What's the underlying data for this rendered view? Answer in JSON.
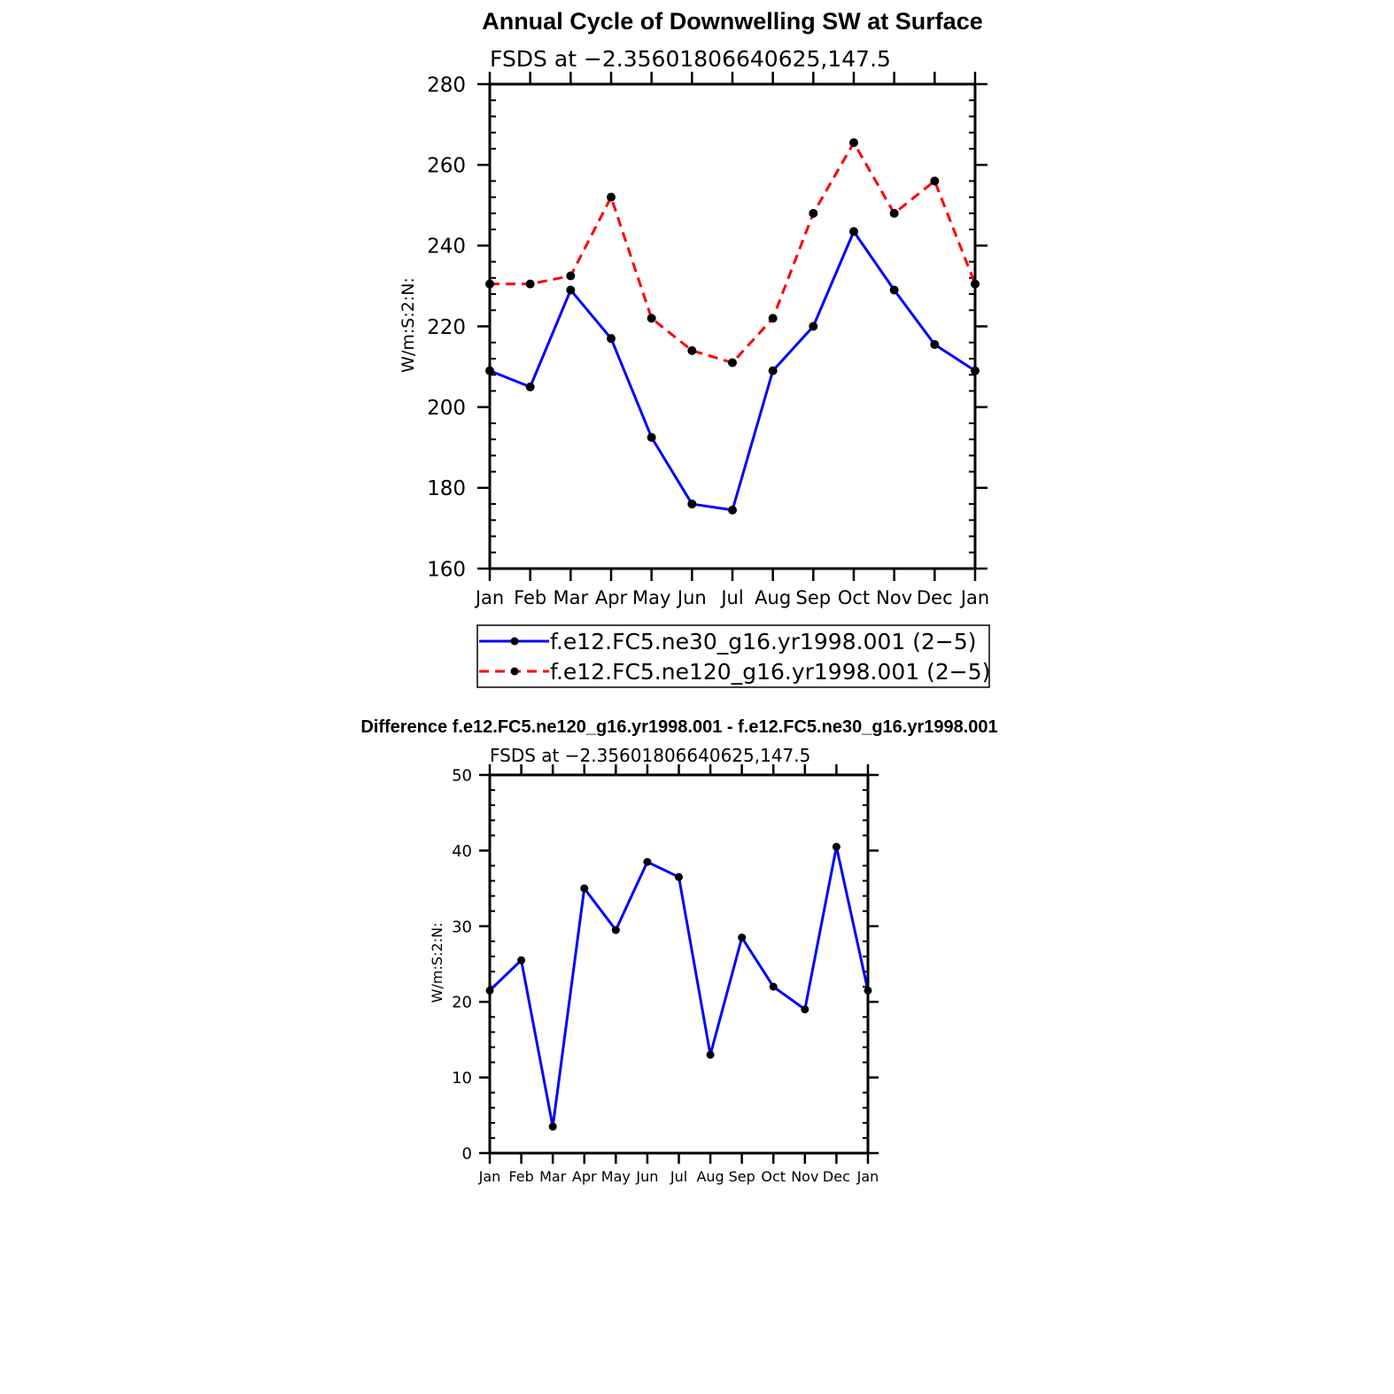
{
  "chart_data": [
    {
      "type": "line",
      "title": "Annual Cycle of Downwelling SW at Surface",
      "subtitle": "FSDS at −2.35601806640625,147.5",
      "ylabel": "W/m:S:2:N:",
      "xlabel": "",
      "ylim": [
        160,
        280
      ],
      "yticks": [
        "160",
        "180",
        "200",
        "220",
        "240",
        "260",
        "280"
      ],
      "categories": [
        "Jan",
        "Feb",
        "Mar",
        "Apr",
        "May",
        "Jun",
        "Jul",
        "Aug",
        "Sep",
        "Oct",
        "Nov",
        "Dec",
        "Jan"
      ],
      "grid": false,
      "legend_position": "bottom",
      "series": [
        {
          "name": "f.e12.FC5.ne30_g16.yr1998.001 (2−5)",
          "color": "#0000ff",
          "dashed": false,
          "values": [
            209,
            205,
            229,
            217,
            192.5,
            176,
            174.5,
            209,
            220,
            243.5,
            229,
            215.5,
            209
          ]
        },
        {
          "name": "f.e12.FC5.ne120_g16.yr1998.001 (2−5)",
          "color": "#ff0000",
          "dashed": true,
          "values": [
            230.5,
            230.5,
            232.5,
            252,
            222,
            214,
            211,
            222,
            248,
            265.5,
            248,
            256,
            230.5
          ]
        }
      ]
    },
    {
      "type": "line",
      "title": "Difference f.e12.FC5.ne120_g16.yr1998.001 - f.e12.FC5.ne30_g16.yr1998.001",
      "subtitle": "FSDS at −2.35601806640625,147.5",
      "ylabel": "W/m:S:2:N:",
      "xlabel": "",
      "ylim": [
        0,
        50
      ],
      "yticks": [
        "0",
        "10",
        "20",
        "30",
        "40",
        "50"
      ],
      "categories": [
        "Jan",
        "Feb",
        "Mar",
        "Apr",
        "May",
        "Jun",
        "Jul",
        "Aug",
        "Sep",
        "Oct",
        "Nov",
        "Dec",
        "Jan"
      ],
      "grid": false,
      "series": [
        {
          "color": "#0000ff",
          "dashed": false,
          "values": [
            21.5,
            25.5,
            3.5,
            35,
            29.5,
            38.5,
            36.5,
            13,
            28.5,
            22,
            19,
            40.5,
            21.5
          ]
        }
      ]
    }
  ]
}
